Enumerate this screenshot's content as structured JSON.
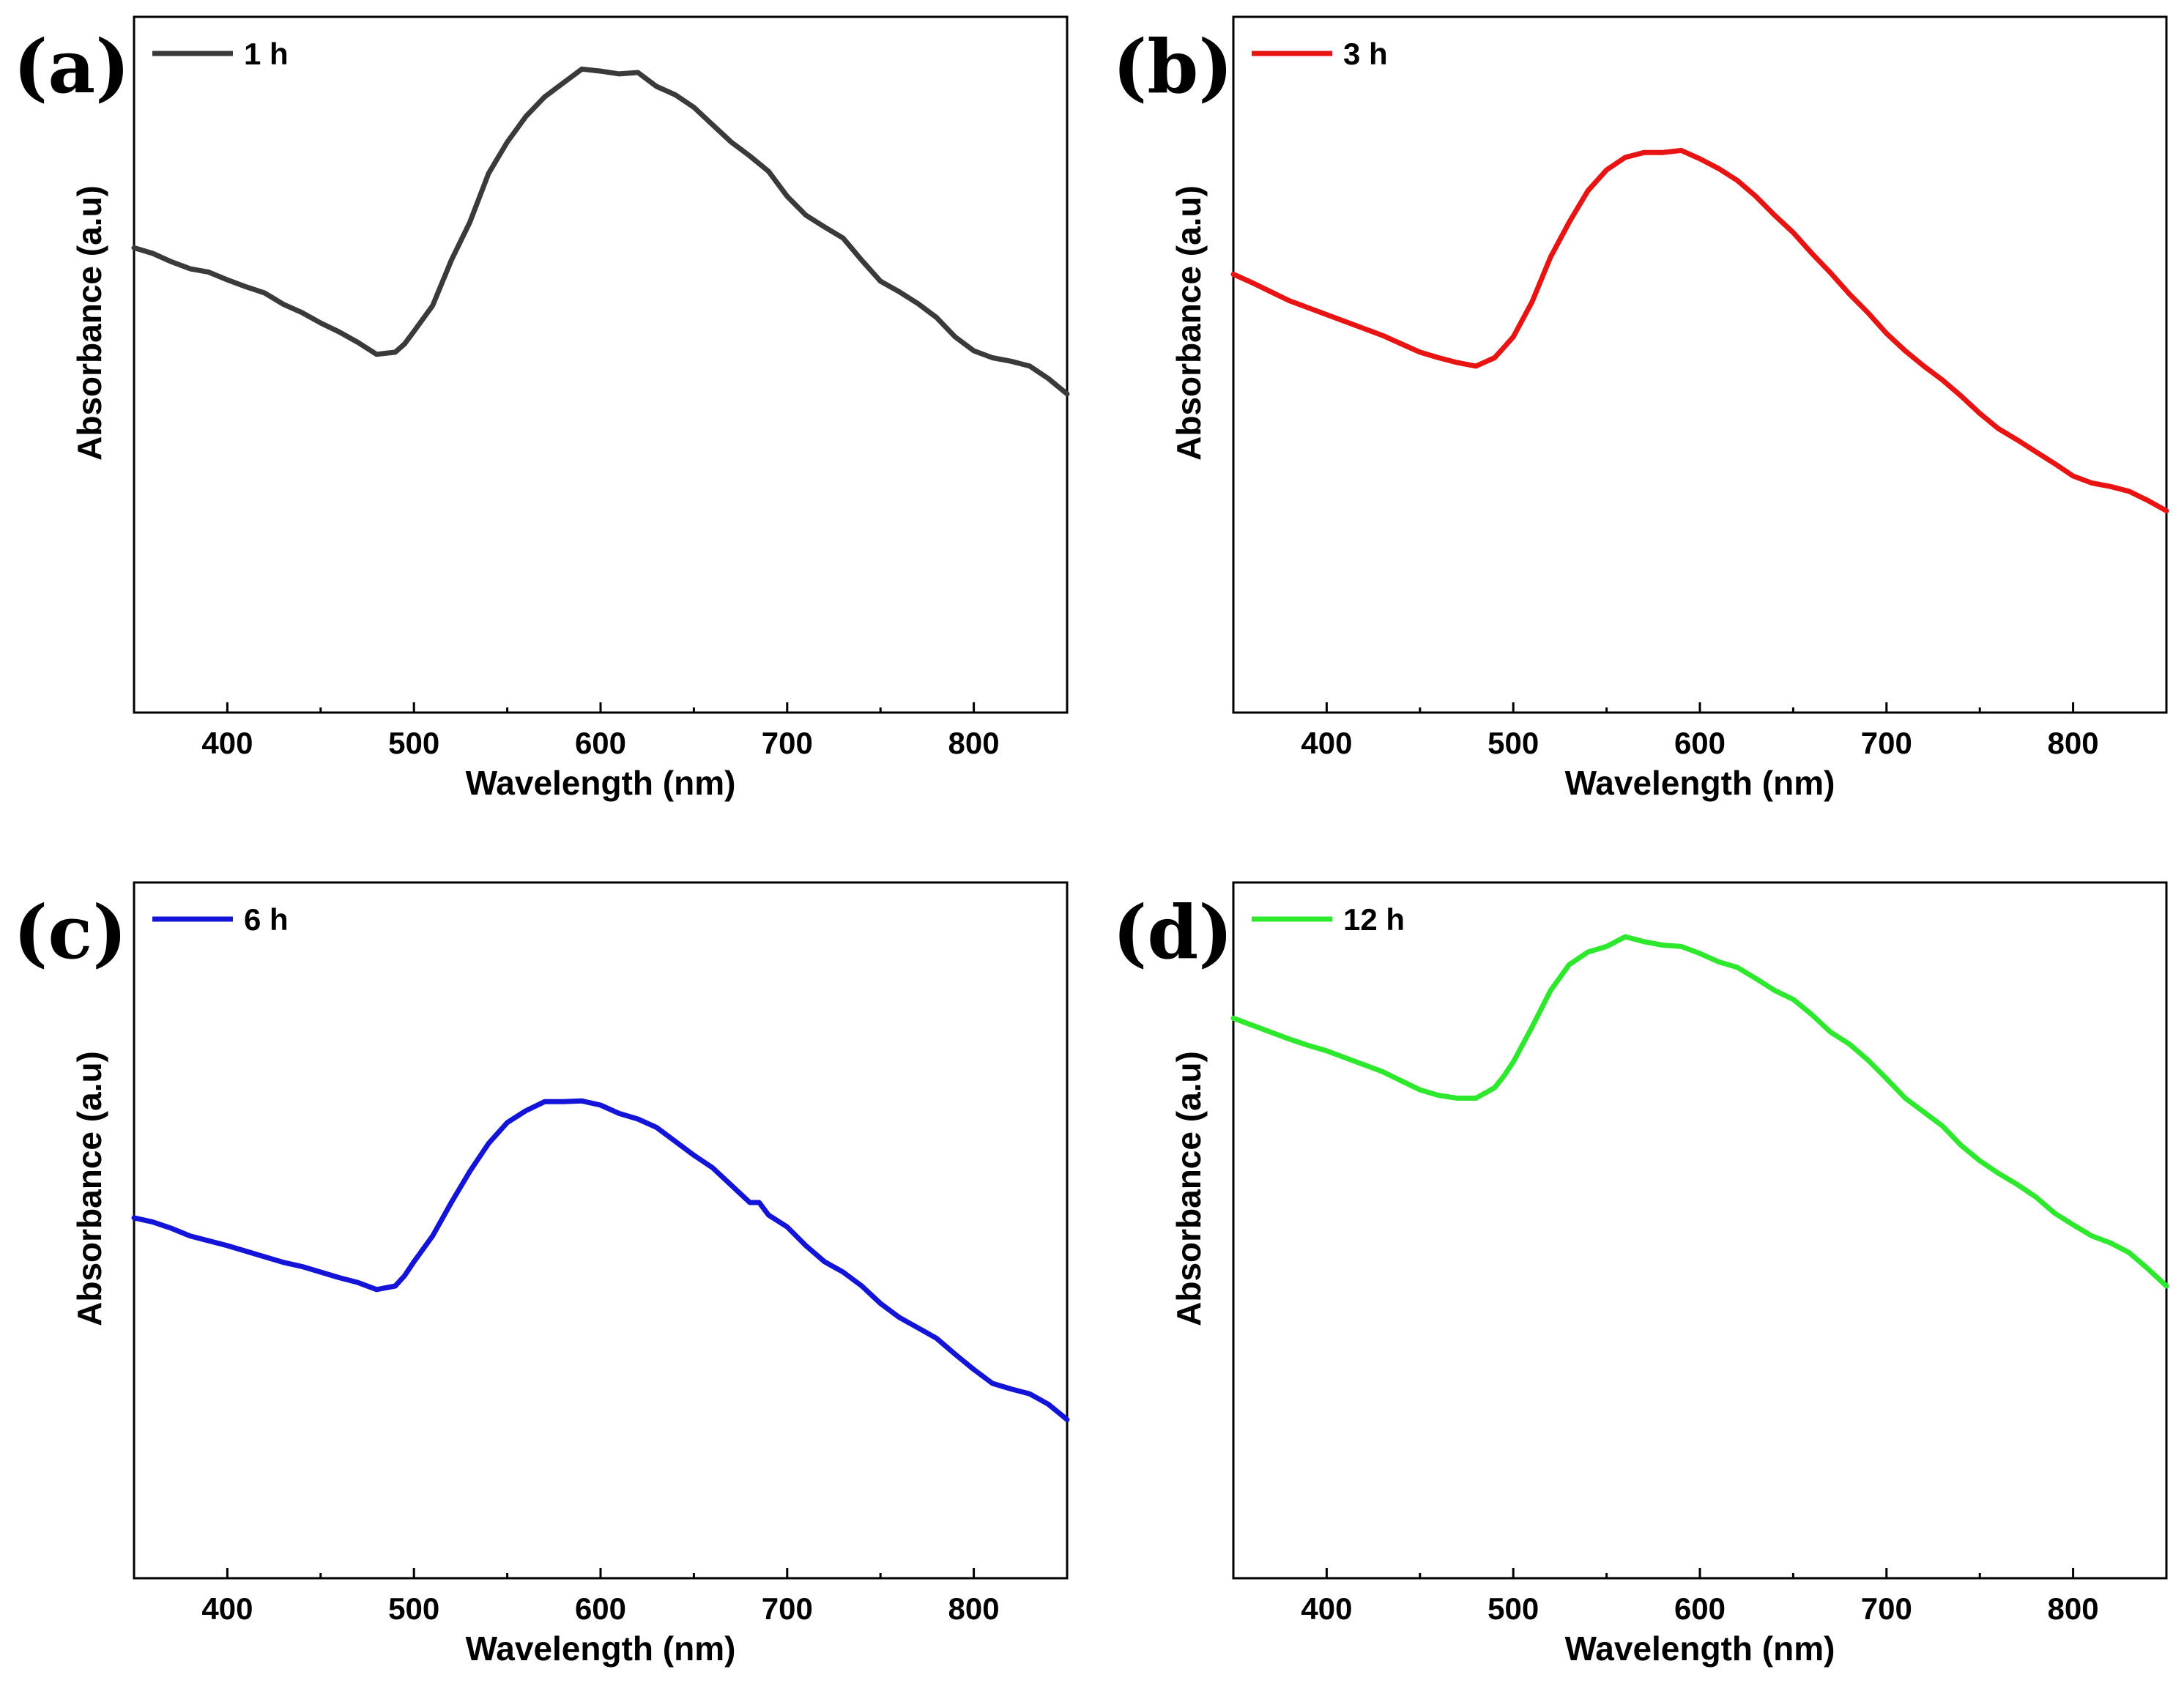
{
  "chart_data": [
    {
      "type": "line",
      "panel_label": "(a)",
      "legend": "1 h",
      "color": "#3a3a3a",
      "xlabel": "Wavelength (nm)",
      "ylabel": "Absorbance (a.u)",
      "xlim": [
        350,
        850
      ],
      "ylim": [
        0,
        1
      ],
      "xticks": [
        400,
        500,
        600,
        700,
        800
      ],
      "x": [
        350,
        360,
        370,
        380,
        390,
        400,
        410,
        420,
        430,
        440,
        450,
        460,
        470,
        480,
        490,
        495,
        500,
        510,
        520,
        530,
        540,
        550,
        560,
        570,
        580,
        590,
        600,
        610,
        620,
        630,
        640,
        650,
        660,
        670,
        680,
        690,
        700,
        710,
        720,
        730,
        740,
        750,
        760,
        770,
        780,
        790,
        800,
        810,
        820,
        830,
        840,
        850
      ],
      "y": [
        0.668,
        0.66,
        0.648,
        0.638,
        0.633,
        0.622,
        0.612,
        0.603,
        0.587,
        0.575,
        0.56,
        0.547,
        0.532,
        0.515,
        0.518,
        0.53,
        0.548,
        0.585,
        0.65,
        0.705,
        0.775,
        0.82,
        0.857,
        0.885,
        0.905,
        0.925,
        0.922,
        0.918,
        0.92,
        0.9,
        0.888,
        0.87,
        0.845,
        0.82,
        0.8,
        0.778,
        0.742,
        0.715,
        0.698,
        0.682,
        0.65,
        0.62,
        0.605,
        0.588,
        0.568,
        0.54,
        0.52,
        0.51,
        0.505,
        0.498,
        0.48,
        0.458
      ]
    },
    {
      "type": "line",
      "panel_label": "(b)",
      "legend": "3 h",
      "color": "#e81414",
      "xlabel": "Wavelength (nm)",
      "ylabel": "Absorbance (a.u)",
      "xlim": [
        350,
        850
      ],
      "ylim": [
        0,
        1
      ],
      "xticks": [
        400,
        500,
        600,
        700,
        800
      ],
      "x": [
        350,
        360,
        370,
        380,
        390,
        400,
        410,
        420,
        430,
        440,
        450,
        460,
        470,
        480,
        490,
        495,
        500,
        510,
        520,
        530,
        540,
        550,
        560,
        570,
        580,
        590,
        600,
        610,
        620,
        630,
        640,
        650,
        660,
        670,
        680,
        690,
        700,
        710,
        720,
        730,
        740,
        750,
        760,
        770,
        780,
        790,
        800,
        810,
        820,
        830,
        840,
        850
      ],
      "y": [
        0.63,
        0.618,
        0.605,
        0.592,
        0.582,
        0.572,
        0.562,
        0.552,
        0.542,
        0.53,
        0.518,
        0.51,
        0.503,
        0.498,
        0.51,
        0.525,
        0.54,
        0.59,
        0.655,
        0.705,
        0.75,
        0.78,
        0.798,
        0.805,
        0.805,
        0.808,
        0.796,
        0.782,
        0.765,
        0.742,
        0.715,
        0.69,
        0.66,
        0.632,
        0.602,
        0.575,
        0.545,
        0.52,
        0.498,
        0.478,
        0.455,
        0.43,
        0.408,
        0.392,
        0.375,
        0.358,
        0.34,
        0.33,
        0.325,
        0.318,
        0.305,
        0.29
      ]
    },
    {
      "type": "line",
      "panel_label": "(c)",
      "legend": "6 h",
      "color": "#1414d8",
      "xlabel": "Wavelength (nm)",
      "ylabel": "Absorbance (a.u)",
      "xlim": [
        350,
        850
      ],
      "ylim": [
        0,
        1
      ],
      "xticks": [
        400,
        500,
        600,
        700,
        800
      ],
      "x": [
        350,
        360,
        370,
        380,
        390,
        400,
        410,
        420,
        430,
        440,
        450,
        460,
        470,
        480,
        490,
        495,
        500,
        510,
        520,
        530,
        540,
        550,
        560,
        570,
        580,
        590,
        600,
        610,
        620,
        630,
        640,
        650,
        660,
        670,
        680,
        685,
        690,
        700,
        710,
        720,
        730,
        740,
        750,
        760,
        770,
        780,
        790,
        800,
        810,
        820,
        830,
        840,
        850
      ],
      "y": [
        0.518,
        0.512,
        0.503,
        0.492,
        0.485,
        0.478,
        0.47,
        0.462,
        0.454,
        0.448,
        0.44,
        0.432,
        0.425,
        0.415,
        0.42,
        0.435,
        0.455,
        0.492,
        0.54,
        0.585,
        0.625,
        0.655,
        0.672,
        0.685,
        0.685,
        0.686,
        0.68,
        0.668,
        0.66,
        0.648,
        0.628,
        0.608,
        0.59,
        0.565,
        0.54,
        0.54,
        0.522,
        0.505,
        0.478,
        0.455,
        0.44,
        0.42,
        0.395,
        0.375,
        0.36,
        0.345,
        0.322,
        0.3,
        0.28,
        0.272,
        0.265,
        0.25,
        0.228
      ]
    },
    {
      "type": "line",
      "panel_label": "(d)",
      "legend": "12 h",
      "color": "#2ee82e",
      "xlabel": "Wavelength (nm)",
      "ylabel": "Absorbance (a.u)",
      "xlim": [
        350,
        850
      ],
      "ylim": [
        0,
        1
      ],
      "xticks": [
        400,
        500,
        600,
        700,
        800
      ],
      "x": [
        350,
        360,
        370,
        380,
        390,
        400,
        410,
        420,
        430,
        440,
        450,
        460,
        470,
        480,
        490,
        495,
        500,
        510,
        520,
        530,
        540,
        550,
        560,
        570,
        580,
        590,
        600,
        610,
        620,
        630,
        640,
        650,
        660,
        670,
        680,
        690,
        700,
        710,
        720,
        730,
        740,
        750,
        760,
        770,
        780,
        790,
        800,
        810,
        820,
        830,
        840,
        850
      ],
      "y": [
        0.805,
        0.795,
        0.785,
        0.775,
        0.766,
        0.758,
        0.748,
        0.738,
        0.728,
        0.715,
        0.702,
        0.694,
        0.69,
        0.69,
        0.705,
        0.722,
        0.742,
        0.792,
        0.845,
        0.882,
        0.9,
        0.908,
        0.922,
        0.915,
        0.91,
        0.908,
        0.898,
        0.886,
        0.878,
        0.862,
        0.845,
        0.832,
        0.81,
        0.785,
        0.768,
        0.745,
        0.718,
        0.69,
        0.67,
        0.65,
        0.622,
        0.6,
        0.582,
        0.566,
        0.548,
        0.525,
        0.508,
        0.492,
        0.482,
        0.468,
        0.445,
        0.42
      ]
    }
  ]
}
